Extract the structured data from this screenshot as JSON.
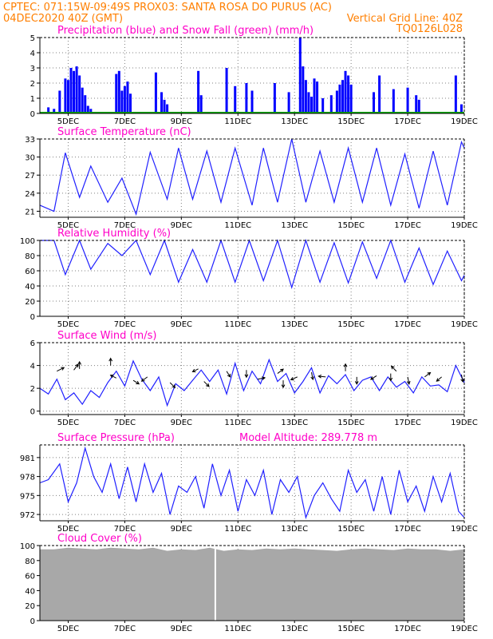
{
  "header": {
    "line1_left": "CPTEC:  071:15W-09:49S  PROX03: SANTA ROSA DO PURUS (AC)",
    "line2_left": "04DEC2020 40Z (GMT)",
    "line2_right": "Vertical Grid Line: 40Z",
    "line3_right": "TQ0126L028"
  },
  "colors": {
    "header": "#ff7f00",
    "title": "#ff00c8",
    "precip": "#0000ff",
    "snow": "#00aa00",
    "series": "#2020ff",
    "cloud": "#a8a8a8"
  },
  "chart_data": [
    {
      "type": "bar",
      "title": "Precipitation (blue) and Snow Fall (green) (mm/h)",
      "x_ticks": [
        "5DEC",
        "7DEC",
        "9DEC",
        "11DEC",
        "13DEC",
        "15DEC",
        "17DEC",
        "19DEC"
      ],
      "ylim": [
        0,
        5
      ],
      "y_ticks": [
        "0",
        "1",
        "2",
        "3",
        "4",
        "5"
      ],
      "grid": true,
      "series": [
        {
          "name": "Precipitation",
          "x": [
            4.3,
            4.5,
            4.7,
            4.9,
            5.0,
            5.1,
            5.2,
            5.3,
            5.4,
            5.5,
            5.6,
            5.7,
            5.8,
            6.7,
            6.8,
            6.9,
            7.0,
            7.1,
            7.2,
            8.1,
            8.3,
            8.4,
            8.5,
            9.6,
            9.7,
            10.6,
            10.9,
            11.3,
            11.5,
            12.3,
            12.8,
            13.2,
            13.3,
            13.4,
            13.5,
            13.6,
            13.7,
            13.8,
            14.0,
            14.3,
            14.5,
            14.6,
            14.7,
            14.8,
            14.9,
            15.0,
            15.8,
            16.0,
            16.5,
            17.0,
            17.3,
            17.4,
            18.7,
            18.9
          ],
          "values": [
            0.4,
            0.3,
            1.5,
            2.3,
            2.2,
            3.0,
            2.8,
            3.1,
            2.5,
            1.7,
            1.2,
            0.5,
            0.3,
            2.6,
            2.8,
            1.5,
            1.8,
            2.1,
            1.3,
            2.7,
            1.4,
            0.9,
            0.6,
            2.8,
            1.2,
            3.0,
            1.8,
            2.0,
            1.5,
            2.0,
            1.4,
            5.0,
            3.1,
            2.2,
            1.4,
            1.1,
            2.3,
            2.1,
            1.0,
            1.2,
            1.5,
            1.9,
            2.2,
            2.8,
            2.5,
            1.9,
            1.4,
            2.5,
            1.6,
            1.7,
            1.2,
            0.9,
            2.5,
            0.6
          ]
        },
        {
          "name": "Snow Fall",
          "x": [],
          "values": []
        }
      ]
    },
    {
      "type": "line",
      "title": "Surface Temperature (nC)",
      "x_ticks": [
        "5DEC",
        "7DEC",
        "9DEC",
        "11DEC",
        "13DEC",
        "15DEC",
        "17DEC",
        "19DEC"
      ],
      "ylim": [
        20,
        33
      ],
      "y_ticks": [
        "21",
        "24",
        "27",
        "30",
        "33"
      ],
      "grid": true,
      "series": [
        {
          "x": [
            4.0,
            4.5,
            4.9,
            5.4,
            5.8,
            6.4,
            6.9,
            7.4,
            7.9,
            8.5,
            8.9,
            9.4,
            9.9,
            10.4,
            10.9,
            11.5,
            11.9,
            12.4,
            12.9,
            13.4,
            13.9,
            14.4,
            14.9,
            15.4,
            15.9,
            16.4,
            16.9,
            17.4,
            17.9,
            18.4,
            18.9,
            19.0
          ],
          "y": [
            22,
            21,
            30.7,
            23.3,
            28.5,
            22.5,
            26.5,
            20.5,
            30.8,
            23,
            31.5,
            23,
            31,
            22.5,
            31.5,
            22,
            31.5,
            22.5,
            33,
            22.5,
            31,
            22.5,
            31.5,
            22.5,
            31.5,
            22,
            30.5,
            21.5,
            31,
            22,
            32.5,
            31.5
          ]
        }
      ]
    },
    {
      "type": "line",
      "title": "Relative Humidity (%)",
      "x_ticks": [
        "5DEC",
        "7DEC",
        "9DEC",
        "11DEC",
        "13DEC",
        "15DEC",
        "17DEC",
        "19DEC"
      ],
      "ylim": [
        0,
        100
      ],
      "y_ticks": [
        "0",
        "20",
        "40",
        "60",
        "80",
        "100"
      ],
      "grid": true,
      "series": [
        {
          "x": [
            4.0,
            4.5,
            4.9,
            5.4,
            5.8,
            6.4,
            6.9,
            7.4,
            7.9,
            8.4,
            8.9,
            9.4,
            9.9,
            10.4,
            10.9,
            11.4,
            11.9,
            12.4,
            12.9,
            13.4,
            13.9,
            14.4,
            14.9,
            15.4,
            15.9,
            16.4,
            16.9,
            17.4,
            17.9,
            18.4,
            18.9,
            19.0
          ],
          "y": [
            100,
            100,
            55,
            100,
            62,
            96,
            80,
            100,
            55,
            100,
            45,
            88,
            45,
            100,
            45,
            100,
            47,
            100,
            38,
            100,
            45,
            97,
            44,
            98,
            50,
            100,
            45,
            90,
            42,
            86,
            47,
            54
          ]
        }
      ]
    },
    {
      "type": "line",
      "title": "Surface Wind (m/s)",
      "x_ticks": [
        "5DEC",
        "7DEC",
        "9DEC",
        "11DEC",
        "13DEC",
        "15DEC",
        "17DEC",
        "19DEC"
      ],
      "ylim": [
        -0.3,
        6
      ],
      "y_ticks": [
        "0",
        "2",
        "4",
        "6"
      ],
      "grid": true,
      "series": [
        {
          "x": [
            4.0,
            4.3,
            4.6,
            4.9,
            5.2,
            5.5,
            5.8,
            6.1,
            6.4,
            6.7,
            7.0,
            7.3,
            7.6,
            7.9,
            8.2,
            8.5,
            8.8,
            9.1,
            9.4,
            9.7,
            10.0,
            10.3,
            10.6,
            10.9,
            11.2,
            11.5,
            11.8,
            12.1,
            12.4,
            12.7,
            13.0,
            13.3,
            13.6,
            13.9,
            14.2,
            14.5,
            14.8,
            15.1,
            15.4,
            15.7,
            16.0,
            16.3,
            16.6,
            16.9,
            17.2,
            17.5,
            17.8,
            18.1,
            18.4,
            18.7,
            19.0
          ],
          "y": [
            2,
            1.5,
            2.8,
            1,
            1.6,
            0.6,
            1.8,
            1.2,
            2.5,
            3.5,
            2.2,
            4.4,
            2.8,
            1.8,
            3,
            0.5,
            2.4,
            1.8,
            2.7,
            3.6,
            2.6,
            3.6,
            1.5,
            4.2,
            1.8,
            3.5,
            2.4,
            4.5,
            2.6,
            3.3,
            1.6,
            2.6,
            3.8,
            1.6,
            3.1,
            2.4,
            3.2,
            1.8,
            2.7,
            3,
            1.8,
            3,
            2.1,
            2.6,
            1.6,
            3,
            2.2,
            2.3,
            1.7,
            4,
            2.5
          ]
        }
      ]
    },
    {
      "type": "line",
      "title": "Surface Pressure (hPa)",
      "subtitle": "Model Altitude: 289.778 m",
      "x_ticks": [
        "5DEC",
        "7DEC",
        "9DEC",
        "11DEC",
        "13DEC",
        "15DEC",
        "17DEC",
        "19DEC"
      ],
      "ylim": [
        971,
        983
      ],
      "y_ticks": [
        "972",
        "975",
        "978",
        "981"
      ],
      "grid": true,
      "series": [
        {
          "x": [
            4.0,
            4.3,
            4.7,
            5.0,
            5.3,
            5.6,
            5.9,
            6.2,
            6.5,
            6.8,
            7.1,
            7.4,
            7.7,
            8.0,
            8.3,
            8.6,
            8.9,
            9.2,
            9.5,
            9.8,
            10.1,
            10.4,
            10.7,
            11.0,
            11.3,
            11.6,
            11.9,
            12.2,
            12.5,
            12.8,
            13.1,
            13.4,
            13.7,
            14.0,
            14.3,
            14.6,
            14.9,
            15.2,
            15.5,
            15.8,
            16.1,
            16.4,
            16.7,
            17.0,
            17.3,
            17.6,
            17.9,
            18.2,
            18.5,
            18.8,
            19.0
          ],
          "y": [
            977,
            977.5,
            980,
            974,
            977,
            982.5,
            978,
            975.5,
            980,
            974.5,
            979.5,
            974,
            980,
            975.5,
            978.5,
            972,
            976.5,
            975.5,
            978,
            973,
            980,
            975,
            979,
            972.5,
            977.5,
            975,
            979,
            972,
            977.5,
            975.5,
            978,
            971.5,
            975,
            977,
            974.5,
            972.5,
            979,
            975.5,
            977.5,
            972.5,
            978,
            972,
            979,
            974,
            976.5,
            972.5,
            978,
            974,
            978.5,
            972.5,
            971.5
          ]
        }
      ]
    },
    {
      "type": "area",
      "title": "Cloud Cover (%)",
      "x_ticks": [
        "5DEC",
        "7DEC",
        "9DEC",
        "11DEC",
        "13DEC",
        "15DEC",
        "17DEC",
        "19DEC"
      ],
      "ylim": [
        0,
        100
      ],
      "y_ticks": [
        "0",
        "20",
        "40",
        "60",
        "80",
        "100"
      ],
      "grid": true,
      "series": [
        {
          "x": [
            4.0,
            4.5,
            5.0,
            5.5,
            6.0,
            6.5,
            7.0,
            7.5,
            8.0,
            8.5,
            9.0,
            9.5,
            10.0,
            10.5,
            11.0,
            11.5,
            12.0,
            12.5,
            13.0,
            13.5,
            14.0,
            14.5,
            15.0,
            15.5,
            16.0,
            16.5,
            17.0,
            17.5,
            18.0,
            18.5,
            19.0
          ],
          "y": [
            95,
            95,
            97,
            96,
            95,
            97,
            96,
            95,
            97,
            93,
            95,
            94,
            97,
            93,
            95,
            94,
            96,
            95,
            96,
            95,
            94,
            93,
            95,
            96,
            95,
            94,
            96,
            95,
            95,
            93,
            95
          ]
        }
      ]
    }
  ]
}
